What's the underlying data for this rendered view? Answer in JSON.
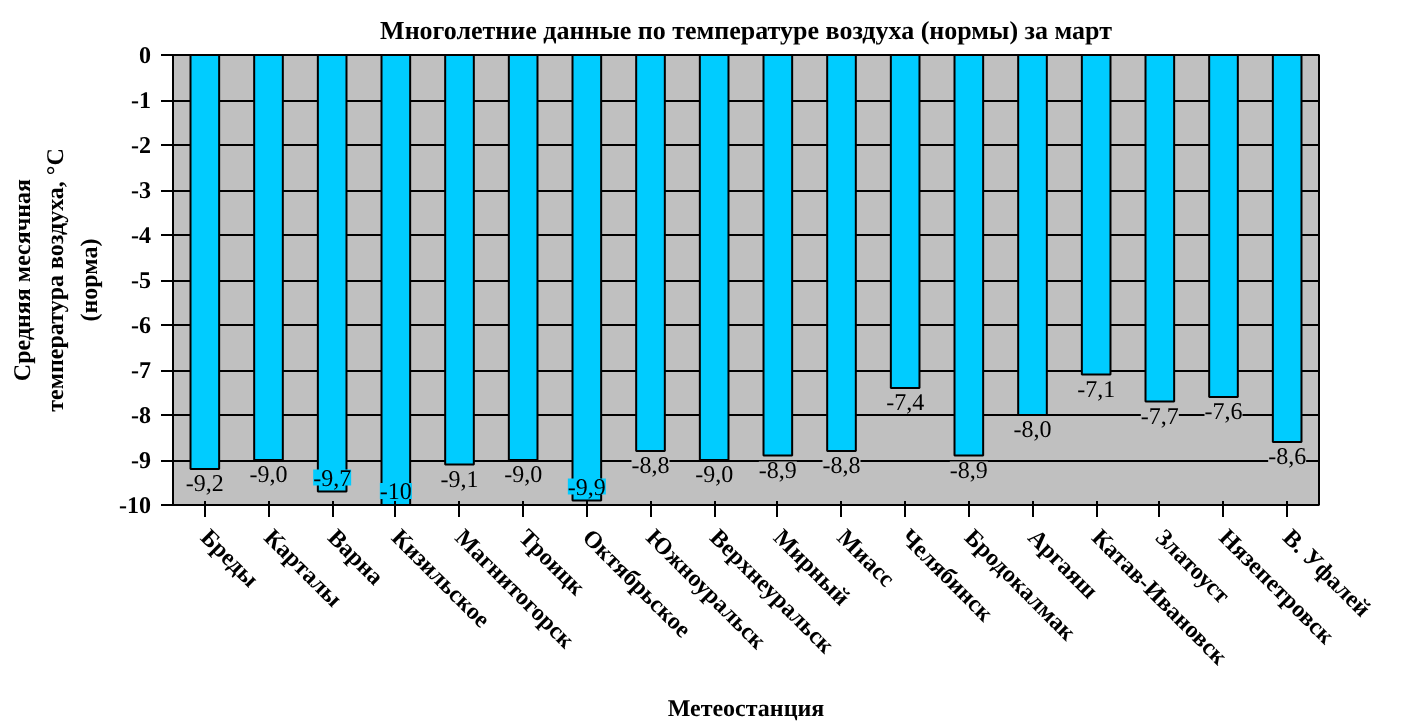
{
  "chart_data": {
    "type": "bar",
    "title": "Многолетние данные по температуре воздуха (нормы) за март",
    "xlabel": "Метеостанция",
    "ylabel": "Средняя месячная температура воздуха, °С (норма)",
    "categories": [
      "Бреды",
      "Карталы",
      "Варна",
      "Кизильское",
      "Магнитогорск",
      "Троицк",
      "Октябрьское",
      "Южноуральск",
      "Верхнеуральск",
      "Мирный",
      "Миасс",
      "Челябинск",
      "Бродокалмак",
      "Аргаяш",
      "Катав-Ивановск",
      "Златоуст",
      "Нязепетровск",
      "В. Уфалей"
    ],
    "values": [
      -9.2,
      -9.0,
      -9.7,
      -10,
      -9.1,
      -9.0,
      -9.9,
      -8.8,
      -9.0,
      -8.9,
      -8.8,
      -7.4,
      -8.9,
      -8.0,
      -7.1,
      -7.7,
      -7.6,
      -8.6
    ],
    "value_labels": [
      "-9,2",
      "-9,0",
      "-9,7",
      "-10",
      "-9,1",
      "-9,0",
      "-9,9",
      "-8,8",
      "-9,0",
      "-8,9",
      "-8,8",
      "-7,4",
      "-8,9",
      "-8,0",
      "-7,1",
      "-7,7",
      "-7,6",
      "-8,6"
    ],
    "color": "#00ccff",
    "ylim": [
      -10,
      0
    ],
    "yticks": [
      0,
      -1,
      -2,
      -3,
      -4,
      -5,
      -6,
      -7,
      -8,
      -9,
      -10
    ],
    "grid": "y",
    "legend": false
  }
}
